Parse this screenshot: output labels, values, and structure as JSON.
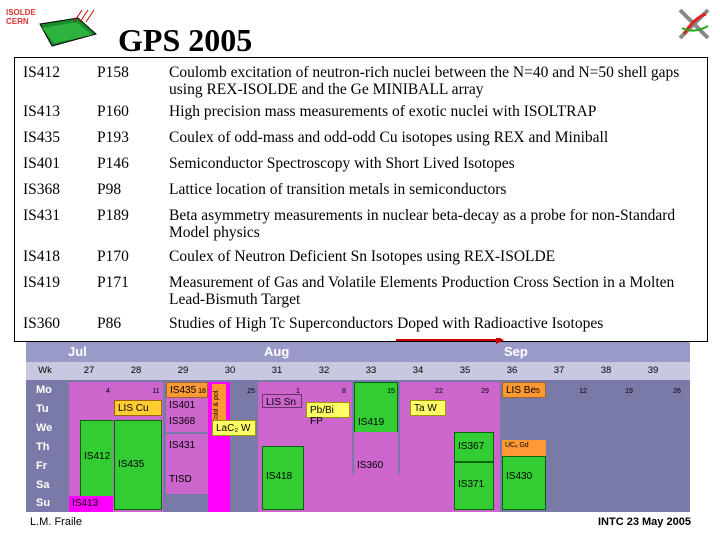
{
  "header": {
    "title": "GPS 2005",
    "logo_left": {
      "line1": "ISOLDE",
      "line2": "CERN"
    }
  },
  "experiments": [
    {
      "id": "IS412",
      "proposal": "P158",
      "title": "Coulomb excitation of neutron-rich nuclei between the N=40 and N=50 shell gaps using REX-ISOLDE and the Ge MINIBALL array"
    },
    {
      "id": "IS413",
      "proposal": "P160",
      "title": "High precision mass measurements of exotic nuclei with ISOLTRAP"
    },
    {
      "id": "IS435",
      "proposal": "P193",
      "title": "Coulex of odd-mass and odd-odd Cu isotopes using REX and Miniball"
    },
    {
      "id": "IS401",
      "proposal": "P146",
      "title": "Semiconductor Spectroscopy with Short Lived Isotopes"
    },
    {
      "id": "IS368",
      "proposal": "P98",
      "title": "Lattice location of transition metals in semiconductors"
    },
    {
      "id": "IS431",
      "proposal": "P189",
      "title": "Beta asymmetry measurements in nuclear beta-decay as a probe for non-Standard Model physics"
    },
    {
      "id": "IS418",
      "proposal": "P170",
      "title": "Coulex of Neutron Deficient Sn Isotopes using REX-ISOLDE"
    },
    {
      "id": "IS419",
      "proposal": "P171",
      "title": "Measurement of Gas and Volatile Elements Production Cross Section in a Molten Lead-Bismuth Target"
    },
    {
      "id": "IS360",
      "proposal": "P86",
      "title": "Studies of High Tc Superconductors Doped with Radioactive Isotopes"
    }
  ],
  "schedule": {
    "months": [
      "Jul",
      "Aug",
      "Sep"
    ],
    "weeks_label": "Wk",
    "weeks": [
      "27",
      "28",
      "29",
      "30",
      "31",
      "32",
      "33",
      "34",
      "35",
      "36",
      "37",
      "38",
      "39"
    ],
    "days": [
      "Mo",
      "Tu",
      "We",
      "Th",
      "Fr",
      "Sa",
      "Su"
    ],
    "dates": [
      "4",
      "11",
      "18",
      "25",
      "1",
      "8",
      "15",
      "22",
      "29",
      "5",
      "12",
      "19",
      "26"
    ],
    "blocks": {
      "is412": "IS412",
      "is413": "IS413",
      "lis_cu": "LIS Cu",
      "is435": "IS435",
      "is435b": "IS435",
      "is401": "IS401",
      "is368": "IS368",
      "is431": "IS431",
      "tisd": "TISD",
      "cold_pol": "Cold & pol.",
      "lis_sn": "LIS Sn",
      "lac2w": "LaC₂ W",
      "is418": "IS418",
      "pb_bi_fp": "Pb/Bi FP",
      "is419": "IS419",
      "is360": "IS360",
      "ta_w": "Ta W",
      "is367": "IS367",
      "is371": "IS371",
      "is430": "IS430",
      "lis_be": "LIS Be",
      "uc_gd": "UCₓ Gd"
    }
  },
  "footer": {
    "author": "L.M. Fraile",
    "event": "INTC 23 May 2005"
  },
  "colors": {
    "schedule_bg": "#7a7aa8",
    "header_bg": "#9a9ac8",
    "green": "#33cc33",
    "pink": "#cc66cc",
    "yellow": "#ffff66",
    "orange": "#ff9933",
    "magenta": "#ff00ff",
    "red_arrow": "#cc0000"
  }
}
